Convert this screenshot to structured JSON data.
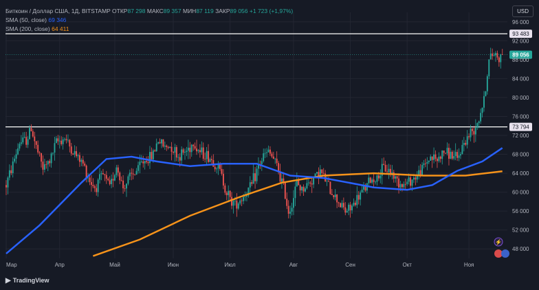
{
  "legend": {
    "symbol": "Биткоин / Доллар США, 1Д, BITSTAMP",
    "open_label": "ОТКР",
    "open": "87 298",
    "high_label": "МАКС",
    "high": "89 357",
    "low_label": "МИН",
    "low": "87 119",
    "close_label": "ЗАКР",
    "close": "89 056",
    "change": "+1 723 (+1,97%)",
    "sma50_label": "SMA (50, close)",
    "sma50_value": "69 346",
    "sma200_label": "SMA (200, close)",
    "sma200_value": "64 411"
  },
  "currency": "USD",
  "brand": "TradingView",
  "colors": {
    "up": "#26a69a",
    "down": "#ef5350",
    "sma50": "#2962ff",
    "sma200": "#f7931a",
    "level": "#ffffff",
    "price_badge": "#26a69a"
  },
  "chart_data": {
    "type": "candlestick",
    "symbol": "Биткоин / Доллар США",
    "timeframe": "1Д",
    "ylim": [
      46000,
      98000
    ],
    "y_ticks": [
      "96 000",
      "92 000",
      "88 000",
      "84 000",
      "80 000",
      "76 000",
      "72 000",
      "68 000",
      "64 000",
      "60 000",
      "56 000",
      "52 000",
      "48 000"
    ],
    "x_labels": [
      "Мар",
      "Апр",
      "Май",
      "Июн",
      "Июл",
      "Авг",
      "Сен",
      "Окт",
      "Ноя"
    ],
    "levels": [
      {
        "label": "93 483",
        "value": 93483
      },
      {
        "label": "73 794",
        "value": 73794
      }
    ],
    "last_price": {
      "label": "89 056",
      "value": 89056
    },
    "close_path": [
      [
        0,
        61500
      ],
      [
        4,
        66000
      ],
      [
        8,
        70500
      ],
      [
        12,
        71000
      ],
      [
        15,
        73500
      ],
      [
        18,
        69500
      ],
      [
        22,
        65000
      ],
      [
        26,
        66500
      ],
      [
        30,
        70500
      ],
      [
        35,
        71500
      ],
      [
        40,
        68500
      ],
      [
        46,
        66000
      ],
      [
        50,
        62500
      ],
      [
        53,
        61000
      ],
      [
        58,
        63500
      ],
      [
        62,
        61000
      ],
      [
        66,
        65500
      ],
      [
        70,
        61000
      ],
      [
        74,
        63000
      ],
      [
        78,
        64500
      ],
      [
        82,
        66500
      ],
      [
        87,
        67500
      ],
      [
        91,
        71000
      ],
      [
        95,
        69500
      ],
      [
        99,
        69800
      ],
      [
        103,
        67500
      ],
      [
        108,
        68800
      ],
      [
        112,
        70500
      ],
      [
        116,
        68500
      ],
      [
        120,
        67800
      ],
      [
        124,
        66500
      ],
      [
        128,
        64500
      ],
      [
        131,
        61000
      ],
      [
        134,
        58500
      ],
      [
        137,
        57500
      ],
      [
        140,
        58500
      ],
      [
        143,
        59500
      ],
      [
        147,
        61500
      ],
      [
        151,
        65500
      ],
      [
        154,
        67500
      ],
      [
        157,
        68500
      ],
      [
        160,
        67000
      ],
      [
        163,
        64500
      ],
      [
        166,
        61000
      ],
      [
        169,
        56000
      ],
      [
        171,
        57500
      ],
      [
        174,
        62000
      ],
      [
        177,
        60500
      ],
      [
        180,
        61500
      ],
      [
        184,
        63000
      ],
      [
        188,
        64500
      ],
      [
        191,
        62500
      ],
      [
        194,
        60500
      ],
      [
        197,
        59000
      ],
      [
        200,
        57500
      ],
      [
        203,
        56000
      ],
      [
        206,
        56500
      ],
      [
        210,
        58500
      ],
      [
        214,
        60500
      ],
      [
        218,
        62500
      ],
      [
        222,
        63000
      ],
      [
        226,
        65000
      ],
      [
        230,
        64500
      ],
      [
        234,
        62500
      ],
      [
        238,
        61500
      ],
      [
        242,
        62500
      ],
      [
        246,
        63500
      ],
      [
        250,
        65500
      ],
      [
        254,
        67500
      ],
      [
        258,
        66800
      ],
      [
        262,
        68500
      ],
      [
        266,
        68000
      ],
      [
        270,
        66800
      ],
      [
        274,
        70500
      ],
      [
        277,
        72000
      ],
      [
        280,
        73500
      ],
      [
        283,
        75800
      ],
      [
        286,
        79500
      ],
      [
        289,
        87800
      ],
      [
        292,
        89500
      ],
      [
        295,
        88500
      ],
      [
        297,
        89056
      ]
    ],
    "sma50": [
      [
        0,
        47000
      ],
      [
        20,
        53000
      ],
      [
        45,
        62000
      ],
      [
        60,
        67000
      ],
      [
        75,
        67500
      ],
      [
        90,
        66500
      ],
      [
        110,
        65500
      ],
      [
        130,
        66000
      ],
      [
        150,
        66000
      ],
      [
        170,
        63500
      ],
      [
        190,
        63000
      ],
      [
        205,
        62000
      ],
      [
        220,
        61000
      ],
      [
        240,
        60500
      ],
      [
        255,
        61500
      ],
      [
        270,
        64500
      ],
      [
        285,
        66500
      ],
      [
        297,
        69346
      ]
    ],
    "sma200": [
      [
        52,
        46500
      ],
      [
        80,
        50000
      ],
      [
        110,
        55000
      ],
      [
        140,
        59000
      ],
      [
        165,
        62000
      ],
      [
        190,
        63500
      ],
      [
        220,
        64000
      ],
      [
        250,
        63500
      ],
      [
        275,
        63500
      ],
      [
        297,
        64411
      ]
    ]
  }
}
